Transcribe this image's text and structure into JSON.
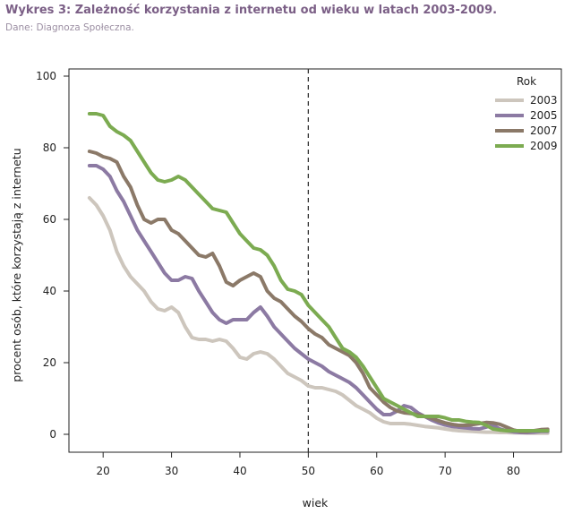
{
  "header": {
    "title": "Wykres 3: Zależność korzystania z internetu od wieku w latach 2003-2009.",
    "source": "Dane: Diagnoza Społeczna."
  },
  "chart_data": {
    "type": "line",
    "title": "Wykres 3: Zależność korzystania z internetu od wieku w latach 2003-2009.",
    "xlabel": "wiek",
    "ylabel": "procent osób, które korzystają z internetu",
    "xlim": [
      15,
      87
    ],
    "ylim": [
      -5,
      102
    ],
    "xticks": [
      20,
      30,
      40,
      50,
      60,
      70,
      80
    ],
    "yticks": [
      0,
      20,
      40,
      60,
      80,
      100
    ],
    "reference_line": {
      "x": 50,
      "style": "dashed"
    },
    "legend": {
      "title": "Rok",
      "position": "top-right"
    },
    "series": [
      {
        "name": "2003",
        "color": "#cdc6bd",
        "x": [
          18,
          19,
          20,
          21,
          22,
          23,
          24,
          25,
          26,
          27,
          28,
          29,
          30,
          31,
          32,
          33,
          34,
          35,
          36,
          37,
          38,
          39,
          40,
          41,
          42,
          43,
          44,
          45,
          46,
          47,
          48,
          49,
          50,
          51,
          52,
          53,
          54,
          55,
          56,
          57,
          58,
          59,
          60,
          61,
          62,
          63,
          64,
          65,
          66,
          67,
          68,
          69,
          70,
          71,
          72,
          73,
          74,
          75,
          76,
          77,
          78,
          79,
          80,
          81,
          82,
          83,
          84,
          85
        ],
        "values": [
          66,
          64,
          61,
          57,
          51,
          47,
          44,
          42,
          40,
          37,
          35,
          34.5,
          35.5,
          34,
          30,
          27,
          26.5,
          26.5,
          26,
          26.5,
          26,
          24,
          21.5,
          21,
          22.5,
          23,
          22.5,
          21,
          19,
          17,
          16,
          15,
          13.5,
          13,
          13,
          12.5,
          12,
          11,
          9.5,
          8,
          7,
          6,
          4.5,
          3.5,
          3,
          3,
          3,
          2.8,
          2.5,
          2.2,
          2,
          1.8,
          1.5,
          1.2,
          1,
          0.9,
          0.8,
          0.7,
          0.6,
          0.6,
          0.5,
          0.5,
          0.4,
          0.4,
          0.3,
          0.3,
          0.3,
          0.3
        ]
      },
      {
        "name": "2005",
        "color": "#8c7aa3",
        "x": [
          18,
          19,
          20,
          21,
          22,
          23,
          24,
          25,
          26,
          27,
          28,
          29,
          30,
          31,
          32,
          33,
          34,
          35,
          36,
          37,
          38,
          39,
          40,
          41,
          42,
          43,
          44,
          45,
          46,
          47,
          48,
          49,
          50,
          51,
          52,
          53,
          54,
          55,
          56,
          57,
          58,
          59,
          60,
          61,
          62,
          63,
          64,
          65,
          66,
          67,
          68,
          69,
          70,
          71,
          72,
          73,
          74,
          75,
          76,
          77,
          78,
          79,
          80,
          81,
          82,
          83,
          84,
          85
        ],
        "values": [
          75,
          75,
          74,
          72,
          68,
          65,
          61,
          57,
          54,
          51,
          48,
          45,
          43,
          43,
          44,
          43.5,
          40,
          37,
          34,
          32,
          31,
          32,
          32,
          32,
          34,
          35.5,
          33,
          30,
          28,
          26,
          24,
          22.5,
          21,
          20,
          19,
          17.5,
          16.5,
          15.5,
          14.5,
          13,
          11,
          9,
          7,
          5.5,
          5.5,
          6.5,
          8,
          7.5,
          6,
          5,
          4,
          3.2,
          2.6,
          2.2,
          2,
          1.8,
          1.6,
          1.5,
          2,
          2.5,
          1.5,
          1,
          0.7,
          0.5,
          0.5,
          0.6,
          0.8,
          0.8
        ]
      },
      {
        "name": "2007",
        "color": "#8b7968",
        "x": [
          18,
          19,
          20,
          21,
          22,
          23,
          24,
          25,
          26,
          27,
          28,
          29,
          30,
          31,
          32,
          33,
          34,
          35,
          36,
          37,
          38,
          39,
          40,
          41,
          42,
          43,
          44,
          45,
          46,
          47,
          48,
          49,
          50,
          51,
          52,
          53,
          54,
          55,
          56,
          57,
          58,
          59,
          60,
          61,
          62,
          63,
          64,
          65,
          66,
          67,
          68,
          69,
          70,
          71,
          72,
          73,
          74,
          75,
          76,
          77,
          78,
          79,
          80,
          81,
          82,
          83,
          84,
          85
        ],
        "values": [
          79,
          78.5,
          77.5,
          77,
          76,
          72,
          69,
          64,
          60,
          59,
          60,
          60,
          57,
          56,
          54,
          52,
          50,
          49.5,
          50.5,
          47,
          42.5,
          41.5,
          43,
          44,
          45,
          44,
          40,
          38,
          37,
          35,
          33,
          31.5,
          29.5,
          28,
          27,
          25,
          24,
          23,
          22,
          20,
          17,
          13,
          11,
          9,
          7.5,
          6.5,
          6,
          5.8,
          5.5,
          5,
          4.5,
          3.8,
          3.2,
          2.8,
          2.5,
          2.5,
          2.7,
          3,
          3.3,
          3.2,
          2.8,
          2,
          1.2,
          0.8,
          0.8,
          1,
          1.3,
          1.4
        ]
      },
      {
        "name": "2009",
        "color": "#7cab51",
        "x": [
          18,
          19,
          20,
          21,
          22,
          23,
          24,
          25,
          26,
          27,
          28,
          29,
          30,
          31,
          32,
          33,
          34,
          35,
          36,
          37,
          38,
          39,
          40,
          41,
          42,
          43,
          44,
          45,
          46,
          47,
          48,
          49,
          50,
          51,
          52,
          53,
          54,
          55,
          56,
          57,
          58,
          59,
          60,
          61,
          62,
          63,
          64,
          65,
          66,
          67,
          68,
          69,
          70,
          71,
          72,
          73,
          74,
          75,
          76,
          77,
          78,
          79,
          80,
          81,
          82,
          83,
          84,
          85
        ],
        "values": [
          89.5,
          89.5,
          89,
          86,
          84.5,
          83.5,
          82,
          79,
          76,
          73,
          71,
          70.5,
          71,
          72,
          71,
          69,
          67,
          65,
          63,
          62.5,
          62,
          59,
          56,
          54,
          52,
          51.5,
          50,
          47,
          43,
          40.5,
          40,
          39,
          36,
          34,
          32,
          30,
          27,
          24,
          23,
          21.5,
          19,
          16,
          13,
          10,
          9,
          8,
          7,
          6,
          5,
          5,
          5,
          5,
          4.6,
          4,
          4,
          3.6,
          3.4,
          3.3,
          2.5,
          1.5,
          1.2,
          1,
          1,
          1,
          1,
          1,
          1,
          1
        ]
      }
    ]
  }
}
